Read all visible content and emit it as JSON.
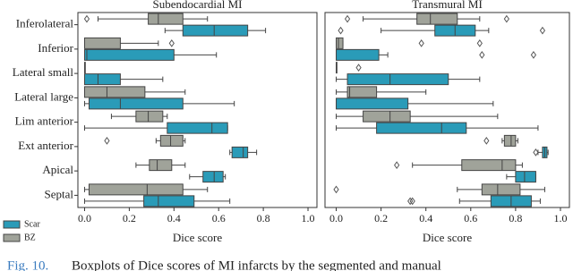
{
  "chart_data": [
    {
      "type": "box",
      "title": "Subendocardial MI",
      "xlabel": "Dice score",
      "categories": [
        "Inferolateral",
        "Inferior",
        "Lateral small",
        "Lateral large",
        "Lim anterior",
        "Ext anterior",
        "Apical",
        "Septal"
      ],
      "xlim": [
        -0.03,
        1.04
      ],
      "xticks": [
        {
          "value": 0,
          "label": "0.0"
        },
        0.2,
        0.4,
        0.6,
        0.8,
        {
          "value": 1,
          "label": "1.0"
        }
      ],
      "legend": "lower left outside",
      "series": [
        {
          "name": "Scar",
          "color": "#2a9bb8",
          "boxes": [
            {
              "min": 0.36,
              "q1": 0.44,
              "median": 0.58,
              "q3": 0.73,
              "max": 0.81
            },
            {
              "min": 0,
              "q1": 0,
              "median": 0.01,
              "q3": 0.4,
              "max": 0.59
            },
            {
              "min": 0,
              "q1": 0,
              "median": 0.06,
              "q3": 0.16,
              "max": 0.35
            },
            {
              "min": 0,
              "q1": 0.02,
              "median": 0.16,
              "q3": 0.44,
              "max": 0.67
            },
            {
              "min": 0,
              "q1": 0.37,
              "median": 0.57,
              "q3": 0.64,
              "max": 0.64
            },
            {
              "min": 0.65,
              "q1": 0.66,
              "median": 0.71,
              "q3": 0.73,
              "max": 0.77
            },
            {
              "min": 0.47,
              "q1": 0.53,
              "median": 0.58,
              "q3": 0.62,
              "max": 0.63
            },
            {
              "min": 0,
              "q1": 0.265,
              "median": 0.33,
              "q3": 0.49,
              "max": 0.65
            }
          ]
        },
        {
          "name": "BZ",
          "color": "#a0a39a",
          "boxes": [
            {
              "min": 0.06,
              "q1": 0.285,
              "median": 0.33,
              "q3": 0.44,
              "max": 0.55,
              "outliers": [
                0.01
              ]
            },
            {
              "min": 0,
              "q1": 0,
              "median": 0,
              "q3": 0.16,
              "max": 0.33,
              "outliers": [
                0.39
              ]
            },
            {
              "min": 0,
              "q1": 0,
              "median": 0,
              "q3": 0,
              "max": 0
            },
            {
              "min": 0,
              "q1": 0,
              "median": 0.1,
              "q3": 0.27,
              "max": 0.45
            },
            {
              "min": 0.12,
              "q1": 0.23,
              "median": 0.285,
              "q3": 0.35,
              "max": 0.37
            },
            {
              "min": 0.32,
              "q1": 0.34,
              "median": 0.385,
              "q3": 0.44,
              "max": 0.45,
              "outliers": [
                0.1
              ]
            },
            {
              "min": 0.23,
              "q1": 0.29,
              "median": 0.325,
              "q3": 0.39,
              "max": 0.45
            },
            {
              "min": 0,
              "q1": 0.02,
              "median": 0.28,
              "q3": 0.44,
              "max": 0.55
            }
          ]
        }
      ]
    },
    {
      "type": "box",
      "title": "Transmural MI",
      "xlabel": "Dice score",
      "xlim": [
        -0.05,
        1.04
      ],
      "xticks": [
        {
          "value": 0,
          "label": "0.0"
        },
        0.2,
        0.4,
        0.6,
        0.8,
        {
          "value": 1,
          "label": "1.0"
        }
      ],
      "series": [
        {
          "boxes": [
            {
              "min": 0.2,
              "q1": 0.44,
              "median": 0.53,
              "q3": 0.62,
              "max": 0.68,
              "outliers": [
                0.02,
                0.92
              ]
            },
            {
              "min": 0,
              "q1": 0,
              "median": 0,
              "q3": 0.19,
              "max": 0.23,
              "outliers": [
                0.65,
                0.88
              ]
            },
            {
              "min": 0,
              "q1": 0.05,
              "median": 0.24,
              "q3": 0.5,
              "max": 0.64
            },
            {
              "min": 0,
              "q1": 0,
              "median": 0,
              "q3": 0.32,
              "max": 0.7
            },
            {
              "min": 0,
              "q1": 0.18,
              "median": 0.47,
              "q3": 0.58,
              "max": 0.9
            },
            {
              "min": 0.9,
              "q1": 0.92,
              "median": 0.93,
              "q3": 0.94,
              "max": 0.945,
              "outliers": [
                0.89
              ]
            },
            {
              "min": 0.76,
              "q1": 0.8,
              "median": 0.84,
              "q3": 0.89,
              "max": 0.89
            },
            {
              "min": 0.55,
              "q1": 0.69,
              "median": 0.78,
              "q3": 0.87,
              "max": 0.91,
              "outliers": [
                0.33,
                0.34
              ]
            }
          ]
        },
        {
          "boxes": [
            {
              "min": 0.12,
              "q1": 0.36,
              "median": 0.42,
              "q3": 0.54,
              "max": 0.64,
              "outliers": [
                0.05,
                0.76
              ]
            },
            {
              "min": 0,
              "q1": 0,
              "median": 0.01,
              "q3": 0.03,
              "max": 0.03,
              "outliers": [
                0.38,
                0.64
              ]
            },
            {
              "min": 0,
              "q1": 0,
              "median": 0,
              "q3": 0,
              "max": 0,
              "outliers": [
                0.1
              ]
            },
            {
              "min": 0,
              "q1": 0.05,
              "median": 0.06,
              "q3": 0.18,
              "max": 0.4
            },
            {
              "min": 0,
              "q1": 0.12,
              "median": 0.24,
              "q3": 0.33,
              "max": 0.72
            },
            {
              "min": 0.74,
              "q1": 0.75,
              "median": 0.78,
              "q3": 0.8,
              "max": 0.81,
              "outliers": [
                0.67
              ]
            },
            {
              "min": 0.34,
              "q1": 0.56,
              "median": 0.74,
              "q3": 0.8,
              "max": 0.83,
              "outliers": [
                0.27
              ]
            },
            {
              "min": 0.54,
              "q1": 0.65,
              "median": 0.72,
              "q3": 0.82,
              "max": 0.93,
              "outliers": [
                0
              ]
            }
          ]
        }
      ]
    }
  ],
  "caption": {
    "label": "Fig. 10.",
    "text": "Boxplots of Dice scores of MI infarcts by the segmented and manual"
  }
}
